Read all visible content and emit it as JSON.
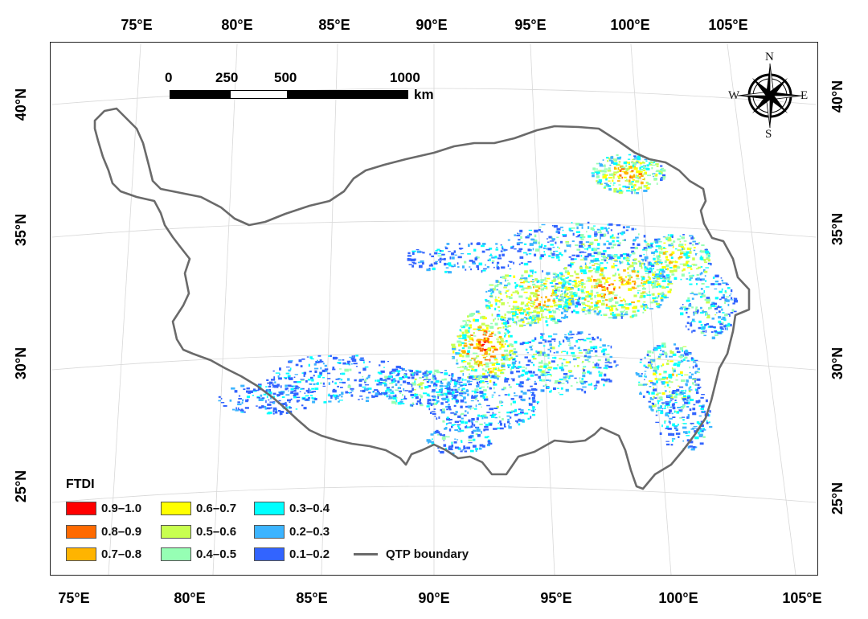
{
  "axes": {
    "top_lon": [
      "75°E",
      "80°E",
      "85°E",
      "90°E",
      "95°E",
      "100°E",
      "105°E"
    ],
    "bottom_lon": [
      "75°E",
      "80°E",
      "85°E",
      "90°E",
      "95°E",
      "100°E",
      "105°E"
    ],
    "left_lat": [
      "40°N",
      "35°N",
      "30°N",
      "25°N"
    ],
    "right_lat": [
      "40°N",
      "35°N",
      "30°N",
      "25°N"
    ]
  },
  "scale_bar": {
    "ticks": [
      "0",
      "250",
      "500",
      "1000"
    ],
    "unit": "km"
  },
  "compass": {
    "n": "N",
    "s": "S",
    "e": "E",
    "w": "W",
    "icon": "compass-rose-icon"
  },
  "legend": {
    "title": "FTDI",
    "classes": [
      {
        "label": "0.9–1.0",
        "color": "#ff0000"
      },
      {
        "label": "0.8–0.9",
        "color": "#ff6a00"
      },
      {
        "label": "0.7–0.8",
        "color": "#ffb400"
      },
      {
        "label": "0.6–0.7",
        "color": "#ffff00"
      },
      {
        "label": "0.5–0.6",
        "color": "#c8ff50"
      },
      {
        "label": "0.4–0.5",
        "color": "#96ffb4"
      },
      {
        "label": "0.3–0.4",
        "color": "#00ffff"
      },
      {
        "label": "0.2–0.3",
        "color": "#3cb4ff"
      },
      {
        "label": "0.1–0.2",
        "color": "#3264ff"
      }
    ],
    "boundary_label": "QTP boundary",
    "boundary_color": "#6a6a6a"
  }
}
